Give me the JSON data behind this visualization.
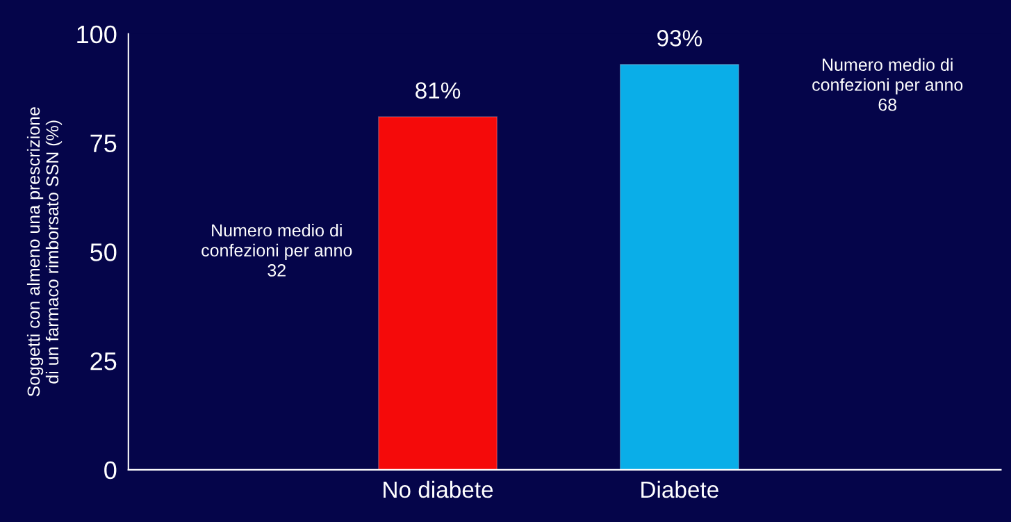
{
  "chart_data": {
    "type": "bar",
    "ylabel": "Soggetti con almeno una prescrizione\ndi un farmaco rimborsato SSN (%)",
    "categories": [
      "No diabete",
      "Diabete"
    ],
    "values": [
      81,
      93
    ],
    "colors": [
      "#f50a0a",
      "#0aaee8"
    ],
    "value_labels": [
      "81%",
      "93%"
    ],
    "ylim": [
      0,
      100
    ],
    "yticks": [
      0,
      25,
      50,
      75,
      100
    ],
    "grid": false,
    "annotations": [
      "Numero medio di\nconfezioni per anno\n32",
      "Numero medio di\nconfezioni per anno\n68"
    ]
  }
}
